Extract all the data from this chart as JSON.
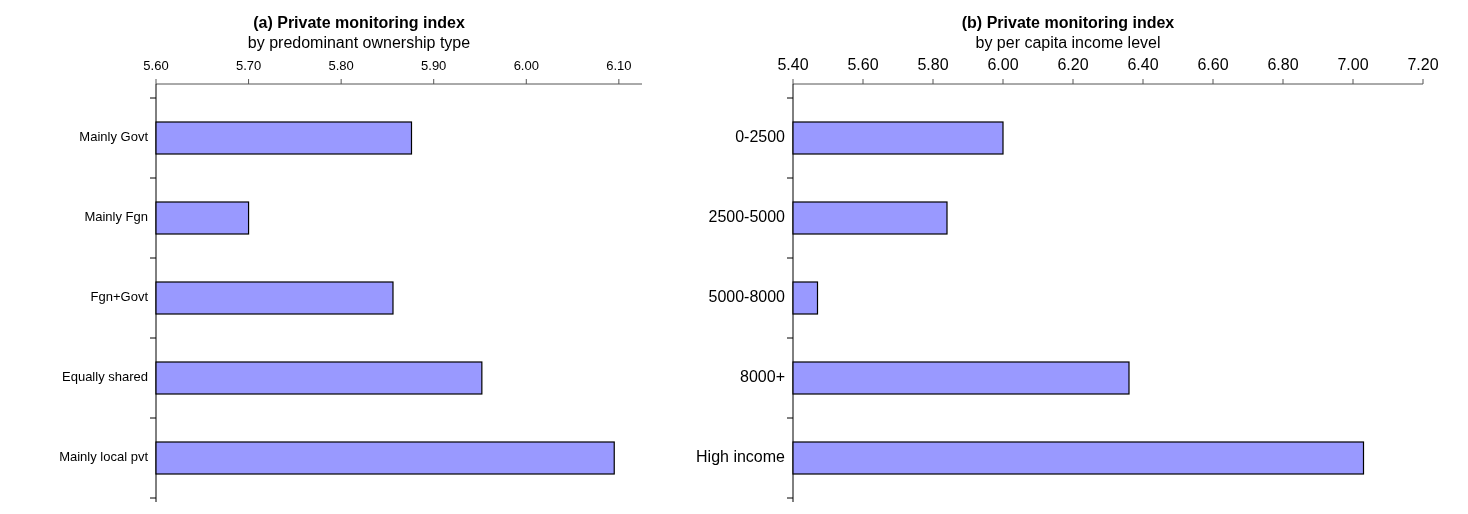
{
  "chart_data": [
    {
      "type": "bar",
      "orientation": "horizontal",
      "title": "(a)  Private monitoring index",
      "subtitle": "by predominant ownership type",
      "categories": [
        "Mainly Govt",
        "Mainly Fgn",
        "Fgn+Govt",
        "Equally shared",
        "Mainly local pvt"
      ],
      "values": [
        5.876,
        5.7,
        5.856,
        5.952,
        6.095
      ],
      "color": "#9999ff",
      "xlim": [
        5.6,
        6.125
      ],
      "xticks": [
        {
          "value": 5.6,
          "label": "5.60"
        },
        {
          "value": 5.7,
          "label": "5.70"
        },
        {
          "value": 5.8,
          "label": "5.80"
        },
        {
          "value": 5.9,
          "label": "5.90"
        },
        {
          "value": 6.0,
          "label": "6.00"
        },
        {
          "value": 6.1,
          "label": "6.10"
        }
      ]
    },
    {
      "type": "bar",
      "orientation": "horizontal",
      "title": "(b)  Private monitoring index",
      "subtitle": "by per capita income level",
      "categories": [
        "0-2500",
        "2500-5000",
        "5000-8000",
        "8000+",
        "High income"
      ],
      "values": [
        6.0,
        5.84,
        5.47,
        6.36,
        7.03
      ],
      "color": "#9999ff",
      "xlim": [
        5.4,
        7.2
      ],
      "xticks": [
        {
          "value": 5.4,
          "label": "5.40"
        },
        {
          "value": 5.6,
          "label": "5.60"
        },
        {
          "value": 5.8,
          "label": "5.80"
        },
        {
          "value": 6.0,
          "label": "6.00"
        },
        {
          "value": 6.2,
          "label": "6.20"
        },
        {
          "value": 6.4,
          "label": "6.40"
        },
        {
          "value": 6.6,
          "label": "6.60"
        },
        {
          "value": 6.8,
          "label": "6.80"
        },
        {
          "value": 7.0,
          "label": "7.00"
        },
        {
          "value": 7.2,
          "label": "7.20"
        }
      ]
    }
  ]
}
